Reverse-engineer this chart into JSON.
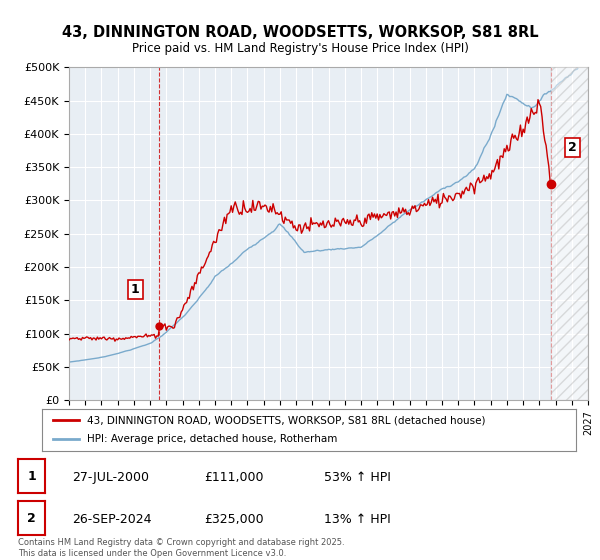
{
  "title_line1": "43, DINNINGTON ROAD, WOODSETTS, WORKSOP, S81 8RL",
  "title_line2": "Price paid vs. HM Land Registry's House Price Index (HPI)",
  "ylabel_ticks": [
    "£0",
    "£50K",
    "£100K",
    "£150K",
    "£200K",
    "£250K",
    "£300K",
    "£350K",
    "£400K",
    "£450K",
    "£500K"
  ],
  "ytick_values": [
    0,
    50000,
    100000,
    150000,
    200000,
    250000,
    300000,
    350000,
    400000,
    450000,
    500000
  ],
  "xlim": [
    1995.0,
    2027.0
  ],
  "ylim": [
    0,
    500000
  ],
  "sale1_x": 2000.57,
  "sale1_y": 111000,
  "sale1_label": "1",
  "sale2_x": 2024.73,
  "sale2_y": 325000,
  "sale2_label": "2",
  "price_color": "#cc0000",
  "hpi_color": "#7aaacc",
  "dashed_line_color": "#cc0000",
  "background_color": "#ffffff",
  "plot_bg_color": "#e8eef4",
  "grid_color": "#ffffff",
  "legend_address": "43, DINNINGTON ROAD, WOODSETTS, WORKSOP, S81 8RL (detached house)",
  "legend_hpi": "HPI: Average price, detached house, Rotherham",
  "annotation1_date": "27-JUL-2000",
  "annotation1_price": "£111,000",
  "annotation1_hpi": "53% ↑ HPI",
  "annotation2_date": "26-SEP-2024",
  "annotation2_price": "£325,000",
  "annotation2_hpi": "13% ↑ HPI",
  "footnote": "Contains HM Land Registry data © Crown copyright and database right 2025.\nThis data is licensed under the Open Government Licence v3.0."
}
